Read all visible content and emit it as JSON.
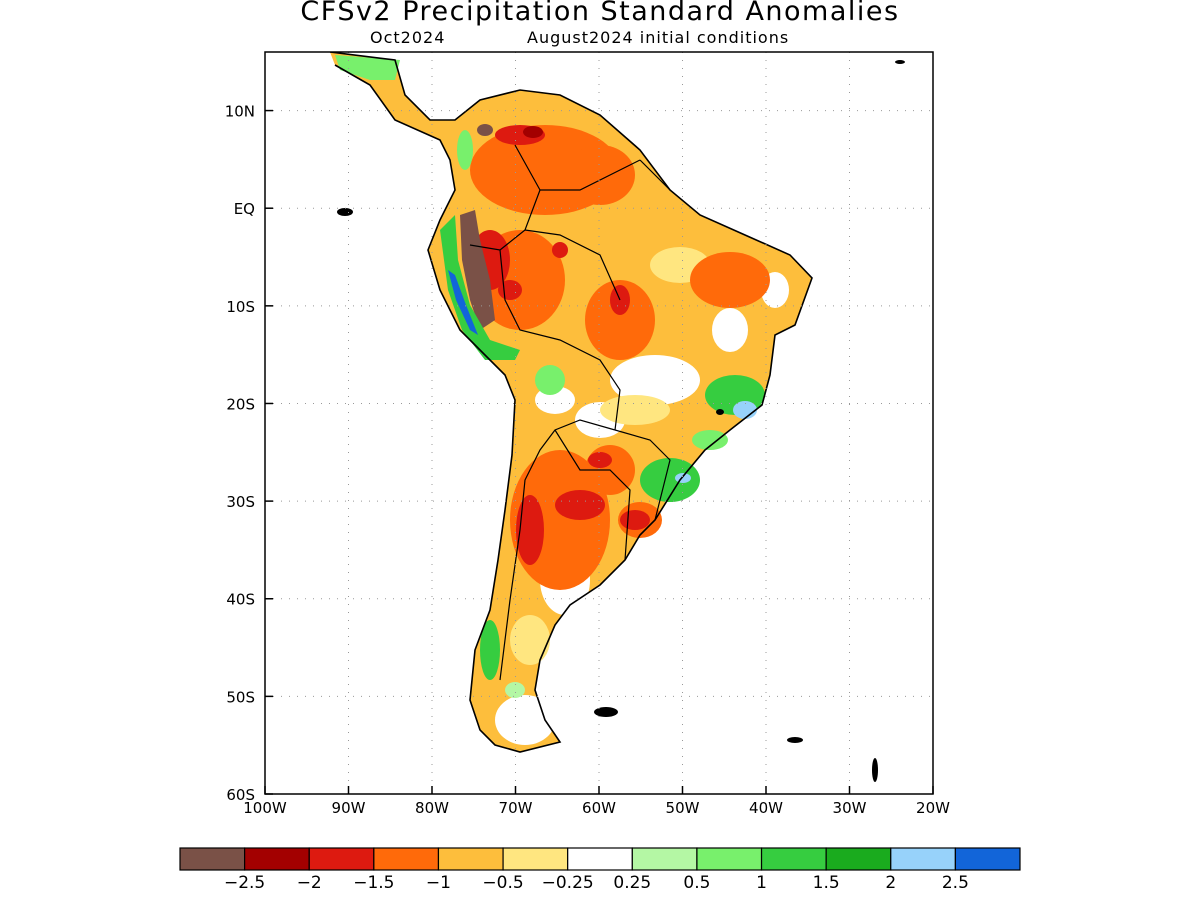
{
  "title": "CFSv2 Precipitation Standard Anomalies",
  "subtitle_month": "Oct2024",
  "subtitle_init": "August2024 initial conditions",
  "map": {
    "lon_range": [
      -100,
      -20
    ],
    "lat_range": [
      -60,
      16
    ],
    "lon_ticks": [
      {
        "value": -100,
        "label": "100W"
      },
      {
        "value": -90,
        "label": "90W"
      },
      {
        "value": -80,
        "label": "80W"
      },
      {
        "value": -70,
        "label": "70W"
      },
      {
        "value": -60,
        "label": "60W"
      },
      {
        "value": -50,
        "label": "50W"
      },
      {
        "value": -40,
        "label": "40W"
      },
      {
        "value": -30,
        "label": "30W"
      },
      {
        "value": -20,
        "label": "20W"
      }
    ],
    "lat_ticks": [
      {
        "value": 10,
        "label": "10N"
      },
      {
        "value": 0,
        "label": "EQ"
      },
      {
        "value": -10,
        "label": "10S"
      },
      {
        "value": -20,
        "label": "20S"
      },
      {
        "value": -30,
        "label": "30S"
      },
      {
        "value": -40,
        "label": "40S"
      },
      {
        "value": -50,
        "label": "50S"
      },
      {
        "value": -60,
        "label": "60S"
      }
    ],
    "grid": "dotted"
  },
  "colorbar": {
    "colors": [
      "#7a5147",
      "#a30000",
      "#dd1a10",
      "#ff6a0a",
      "#fdbe3c",
      "#ffe680",
      "#ffffff",
      "#b4f7a4",
      "#78f06c",
      "#36cd40",
      "#1aab1e",
      "#97d2fa",
      "#1265d9"
    ],
    "labels": [
      "-2.5",
      "-2",
      "-1.5",
      "-1",
      "-0.5",
      "-0.25",
      "0.25",
      "0.5",
      "1",
      "1.5",
      "2",
      "2.5"
    ]
  }
}
